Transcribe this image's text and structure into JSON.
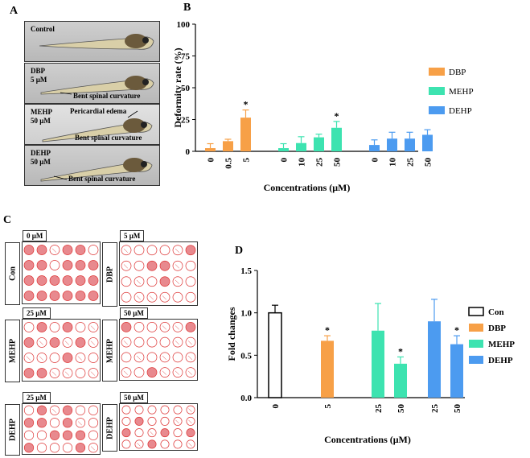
{
  "panel_a": {
    "letter": "A",
    "images": [
      {
        "label": "Control",
        "conc": "",
        "notes": []
      },
      {
        "label": "DBP",
        "conc": "5 μM",
        "notes": [
          "Bent spinal curvature"
        ]
      },
      {
        "label": "MEHP",
        "conc": "50 μM",
        "notes": [
          "Pericardial edema",
          "Bent spinal curvature"
        ]
      },
      {
        "label": "DEHP",
        "conc": "50 μM",
        "notes": [
          "Bent spinal curvature"
        ]
      }
    ]
  },
  "panel_c": {
    "letter": "C",
    "plates": [
      {
        "row_label": "Con",
        "conc": "0 μM",
        "density": 0.9
      },
      {
        "row_label": "DBP",
        "conc": "5 μM",
        "density": 0.2
      },
      {
        "row_label": "MEHP",
        "conc": "25 μM",
        "density": 0.3
      },
      {
        "row_label": "MEHP",
        "conc": "50 μM",
        "density": 0.2
      },
      {
        "row_label": "DEHP",
        "conc": "25 μM",
        "density": 0.35
      },
      {
        "row_label": "DEHP",
        "conc": "50 μM",
        "density": 0.25
      }
    ]
  },
  "chart_data": [
    {
      "panel": "B",
      "type": "bar",
      "title": "",
      "xlabel": "Concentrations (μM)",
      "ylabel": "Deformity rate (%)",
      "ylim": [
        0,
        100
      ],
      "yticks": [
        0,
        25,
        50,
        75,
        100
      ],
      "legend_position": "right",
      "series": [
        {
          "name": "DBP",
          "color": "#F7A047",
          "categories": [
            "0",
            "0.5",
            "5"
          ],
          "values": [
            2.5,
            8,
            26.5
          ],
          "errors": [
            3.5,
            1.5,
            6
          ],
          "sig": [
            "",
            "",
            "*"
          ]
        },
        {
          "name": "MEHP",
          "color": "#3DE3B0",
          "categories": [
            "0",
            "10",
            "25",
            "50"
          ],
          "values": [
            2.5,
            6.5,
            11,
            18.5
          ],
          "errors": [
            3.5,
            5,
            2.5,
            5
          ],
          "sig": [
            "",
            "",
            "",
            "*"
          ]
        },
        {
          "name": "DEHP",
          "color": "#4C9BF0",
          "categories": [
            "0",
            "10",
            "25",
            "50"
          ],
          "values": [
            5,
            10,
            10,
            13
          ],
          "errors": [
            4,
            5,
            5,
            4
          ],
          "sig": [
            "",
            "",
            "",
            ""
          ]
        }
      ]
    },
    {
      "panel": "D",
      "type": "bar",
      "title": "",
      "xlabel": "Concentrations (μM)",
      "ylabel": "Fold changes",
      "ylim": [
        0,
        1.5
      ],
      "yticks": [
        "0.0",
        "0.5",
        "1.0",
        "1.5"
      ],
      "legend_position": "right",
      "series": [
        {
          "name": "Con",
          "color": "#FFFFFF",
          "categories": [
            "0"
          ],
          "values": [
            1.0
          ],
          "errors": [
            0.09
          ],
          "sig": [
            ""
          ]
        },
        {
          "name": "DBP",
          "color": "#F7A047",
          "categories": [
            "5"
          ],
          "values": [
            0.67
          ],
          "errors": [
            0.06
          ],
          "sig": [
            "*"
          ]
        },
        {
          "name": "MEHP",
          "color": "#3DE3B0",
          "categories": [
            "25",
            "50"
          ],
          "values": [
            0.79,
            0.4
          ],
          "errors": [
            0.32,
            0.08
          ],
          "sig": [
            "",
            "*"
          ]
        },
        {
          "name": "DEHP",
          "color": "#4C9BF0",
          "categories": [
            "25",
            "50"
          ],
          "values": [
            0.9,
            0.63
          ],
          "errors": [
            0.26,
            0.1
          ],
          "sig": [
            "",
            "*"
          ]
        }
      ]
    }
  ]
}
